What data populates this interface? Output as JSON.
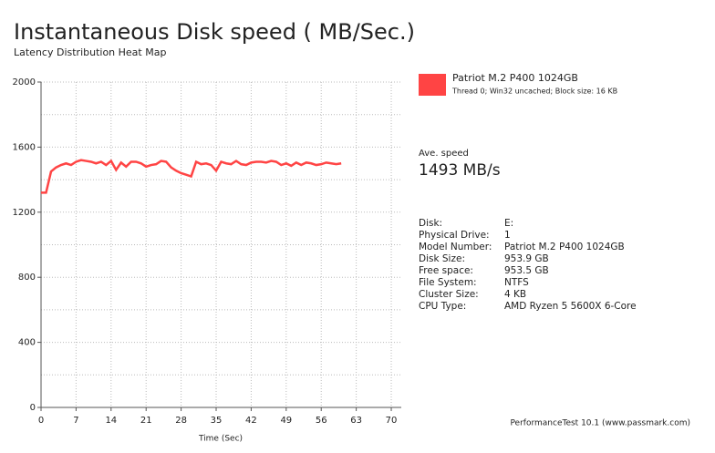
{
  "chart_data": {
    "type": "line",
    "title": "Instantaneous Disk speed ( MB/Sec.)",
    "subtitle": "Latency Distribution Heat Map",
    "x_label": "Time (Sec)",
    "x": [
      0,
      1,
      2,
      3,
      4,
      5,
      6,
      7,
      8,
      9,
      10,
      11,
      12,
      13,
      14,
      15,
      16,
      17,
      18,
      19,
      20,
      21,
      22,
      23,
      24,
      25,
      26,
      27,
      28,
      29,
      30,
      31,
      32,
      33,
      34,
      35,
      36,
      37,
      38,
      39,
      40,
      41,
      42,
      43,
      44,
      45,
      46,
      47,
      48,
      49,
      50,
      51,
      52,
      53,
      54,
      55,
      56,
      57,
      58,
      59,
      60
    ],
    "series": [
      {
        "name": "Patriot M.2 P400 1024GB",
        "description": "Thread 0; Win32 uncached; Block size: 16 KB",
        "color": "#ff4444",
        "values": [
          1320,
          1320,
          1450,
          1475,
          1490,
          1500,
          1490,
          1510,
          1520,
          1515,
          1510,
          1500,
          1510,
          1490,
          1515,
          1460,
          1505,
          1480,
          1510,
          1510,
          1500,
          1480,
          1490,
          1495,
          1515,
          1510,
          1475,
          1455,
          1440,
          1430,
          1420,
          1510,
          1495,
          1500,
          1490,
          1455,
          1510,
          1500,
          1495,
          1515,
          1495,
          1490,
          1505,
          1510,
          1510,
          1505,
          1515,
          1510,
          1490,
          1500,
          1485,
          1505,
          1490,
          1505,
          1500,
          1490,
          1495,
          1505,
          1500,
          1495,
          1500
        ]
      }
    ],
    "xlim": [
      0,
      72
    ],
    "xticks": [
      0,
      7,
      14,
      21,
      28,
      35,
      42,
      49,
      56,
      63,
      70
    ],
    "ylim": [
      0,
      2000
    ],
    "yticks": [
      0,
      400,
      800,
      1200,
      1600,
      2000
    ],
    "y_grid_lines": [
      200,
      600,
      1000,
      1400,
      1800
    ],
    "grid": true,
    "average_label": "Ave. speed",
    "average_value": "1493 MB/s",
    "details": [
      [
        "Disk:",
        "E:"
      ],
      [
        "Physical Drive:",
        "1"
      ],
      [
        "Model Number:",
        "Patriot M.2 P400 1024GB"
      ],
      [
        "Disk Size:",
        "953.9 GB"
      ],
      [
        "Free space:",
        "953.5 GB"
      ],
      [
        "File System:",
        "NTFS"
      ],
      [
        "Cluster Size:",
        "4 KB"
      ],
      [
        "CPU Type:",
        "AMD Ryzen 5 5600X 6-Core"
      ]
    ],
    "footer": "PerformanceTest 10.1 (www.passmark.com)"
  }
}
